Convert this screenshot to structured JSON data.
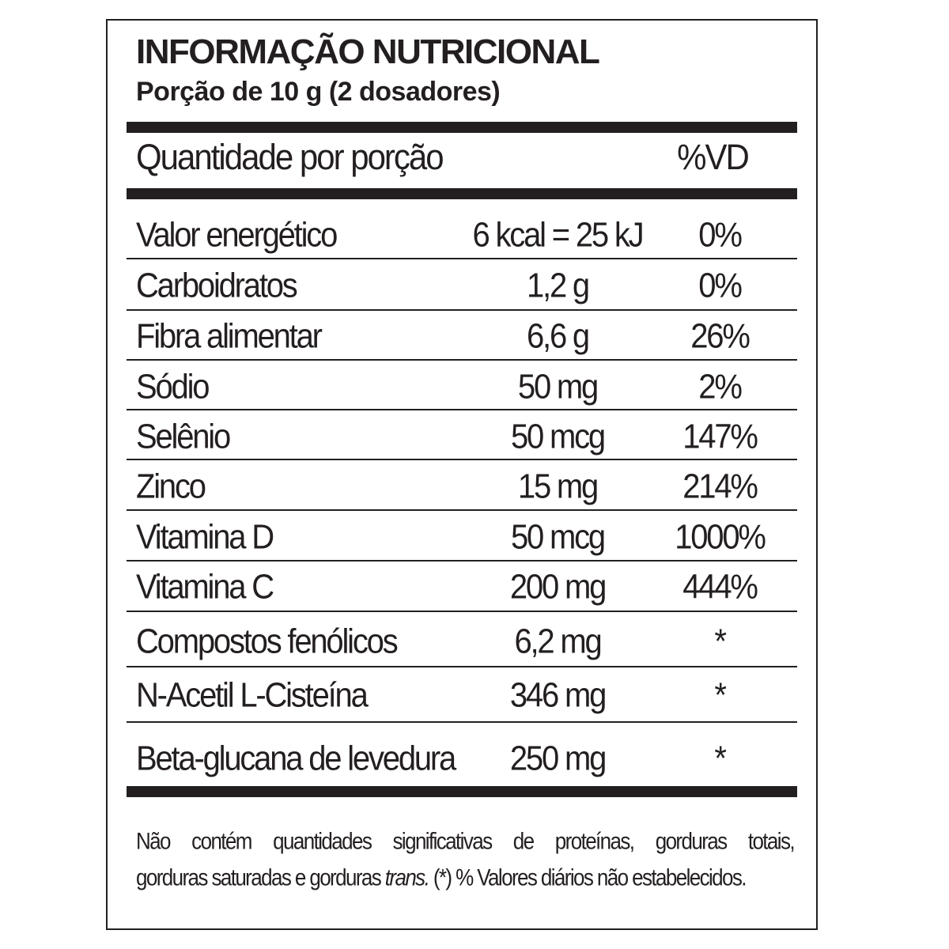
{
  "label": {
    "title": "INFORMAÇÃO NUTRICIONAL",
    "portion": "Porção de 10 g (2 dosadores)",
    "header": {
      "quantity_label": "Quantidade por porção",
      "dv_label": "%VD"
    },
    "rows": [
      {
        "name": "Valor energético",
        "amount": "6 kcal = 25 kJ",
        "dv": "0%"
      },
      {
        "name": "Carboidratos",
        "amount": "1,2 g",
        "dv": "0%"
      },
      {
        "name": "Fibra alimentar",
        "amount": "6,6 g",
        "dv": "26%"
      },
      {
        "name": "Sódio",
        "amount": "50 mg",
        "dv": "2%"
      },
      {
        "name": "Selênio",
        "amount": "50 mcg",
        "dv": "147%"
      },
      {
        "name": "Zinco",
        "amount": "15 mg",
        "dv": "214%"
      },
      {
        "name": "Vitamina D",
        "amount": "50 mcg",
        "dv": "1000%"
      },
      {
        "name": "Vitamina C",
        "amount": "200 mg",
        "dv": "444%"
      },
      {
        "name": "Compostos fenólicos",
        "amount": "6,2 mg",
        "dv": "*"
      },
      {
        "name": "N-Acetil L-Cisteína",
        "amount": "346 mg",
        "dv": "*"
      },
      {
        "name": "Beta-glucana de levedura",
        "amount": "250 mg",
        "dv": "*"
      }
    ],
    "footnote": {
      "line1": "Não contém quantidades significativas de proteínas, gorduras totais,",
      "line2_pre": "gorduras saturadas e gorduras ",
      "line2_italic": "trans.",
      "line2_post": " (*) % Valores diários não estabelecidos."
    }
  }
}
